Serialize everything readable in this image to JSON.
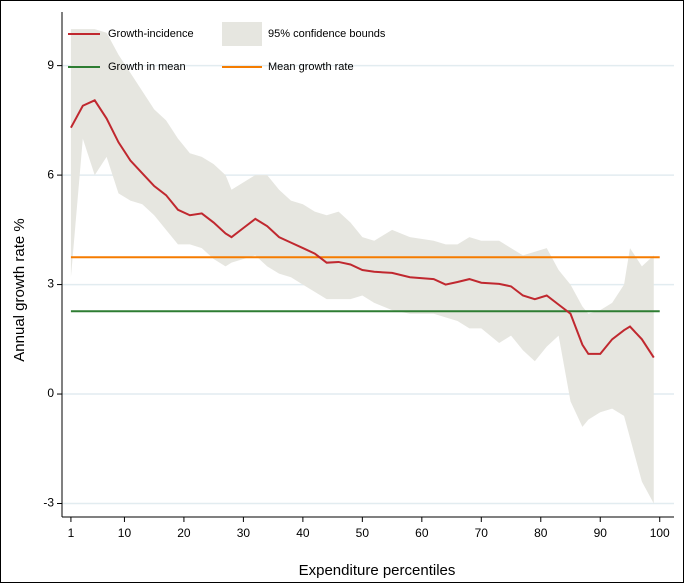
{
  "chart_data": {
    "type": "line",
    "xlabel": "Expenditure percentiles",
    "ylabel": "Annual growth rate %",
    "x": [
      1,
      3,
      5,
      7,
      9,
      11,
      13,
      15,
      17,
      19,
      21,
      23,
      25,
      27,
      28,
      30,
      32,
      34,
      36,
      38,
      40,
      42,
      44,
      46,
      48,
      50,
      52,
      55,
      58,
      62,
      64,
      66,
      68,
      70,
      73,
      75,
      77,
      79,
      81,
      83,
      85,
      87,
      88,
      90,
      92,
      94,
      95,
      97,
      99
    ],
    "series": [
      {
        "name": "Growth-incidence",
        "color": "#c0282f",
        "values": [
          7.3,
          7.9,
          8.05,
          7.55,
          6.9,
          6.4,
          6.05,
          5.7,
          5.45,
          5.05,
          4.9,
          4.95,
          4.7,
          4.4,
          4.3,
          4.55,
          4.8,
          4.6,
          4.3,
          4.15,
          4.0,
          3.85,
          3.6,
          3.62,
          3.55,
          3.4,
          3.35,
          3.32,
          3.2,
          3.15,
          3.0,
          3.07,
          3.15,
          3.05,
          3.02,
          2.95,
          2.7,
          2.6,
          2.7,
          2.45,
          2.2,
          1.35,
          1.1,
          1.1,
          1.5,
          1.75,
          1.85,
          1.5,
          1.0
        ]
      }
    ],
    "band": {
      "name": "95% confidence bounds",
      "color": "#e6e6e0",
      "upper": [
        10.0,
        10.0,
        10.0,
        9.9,
        9.3,
        8.8,
        8.3,
        7.8,
        7.5,
        7.0,
        6.6,
        6.5,
        6.3,
        6.0,
        5.6,
        5.8,
        6.0,
        6.0,
        5.6,
        5.3,
        5.2,
        5.0,
        4.9,
        5.0,
        4.7,
        4.3,
        4.2,
        4.5,
        4.3,
        4.2,
        4.1,
        4.1,
        4.3,
        4.2,
        4.2,
        4.0,
        3.8,
        3.9,
        4.0,
        3.4,
        3.0,
        2.4,
        2.2,
        2.3,
        2.5,
        3.0,
        4.0,
        3.5,
        3.8
      ],
      "lower": [
        3.2,
        7.0,
        6.0,
        6.5,
        5.5,
        5.3,
        5.2,
        4.9,
        4.5,
        4.1,
        4.1,
        4.0,
        3.7,
        3.5,
        3.6,
        3.7,
        3.8,
        3.5,
        3.3,
        3.2,
        3.0,
        2.8,
        2.6,
        2.6,
        2.6,
        2.7,
        2.5,
        2.3,
        2.2,
        2.2,
        2.1,
        2.0,
        1.8,
        1.8,
        1.4,
        1.6,
        1.2,
        0.9,
        1.3,
        1.6,
        -0.2,
        -0.9,
        -0.7,
        -0.5,
        -0.4,
        -0.6,
        -1.2,
        -2.4,
        -3.0
      ]
    },
    "hlines": [
      {
        "name": "Growth in mean",
        "color": "#2e7d32",
        "value": 2.27
      },
      {
        "name": "Mean growth rate",
        "color": "#f57c00",
        "value": 3.75
      }
    ],
    "xlim": [
      -0.5,
      102.4
    ],
    "ylim": [
      -3.37,
      10.47
    ],
    "xticks": [
      1,
      10,
      20,
      30,
      40,
      50,
      60,
      70,
      80,
      90,
      100
    ],
    "yticks": [
      -3,
      0,
      3,
      6,
      9
    ],
    "grid": true,
    "grid_color": "#e2ecf0"
  }
}
